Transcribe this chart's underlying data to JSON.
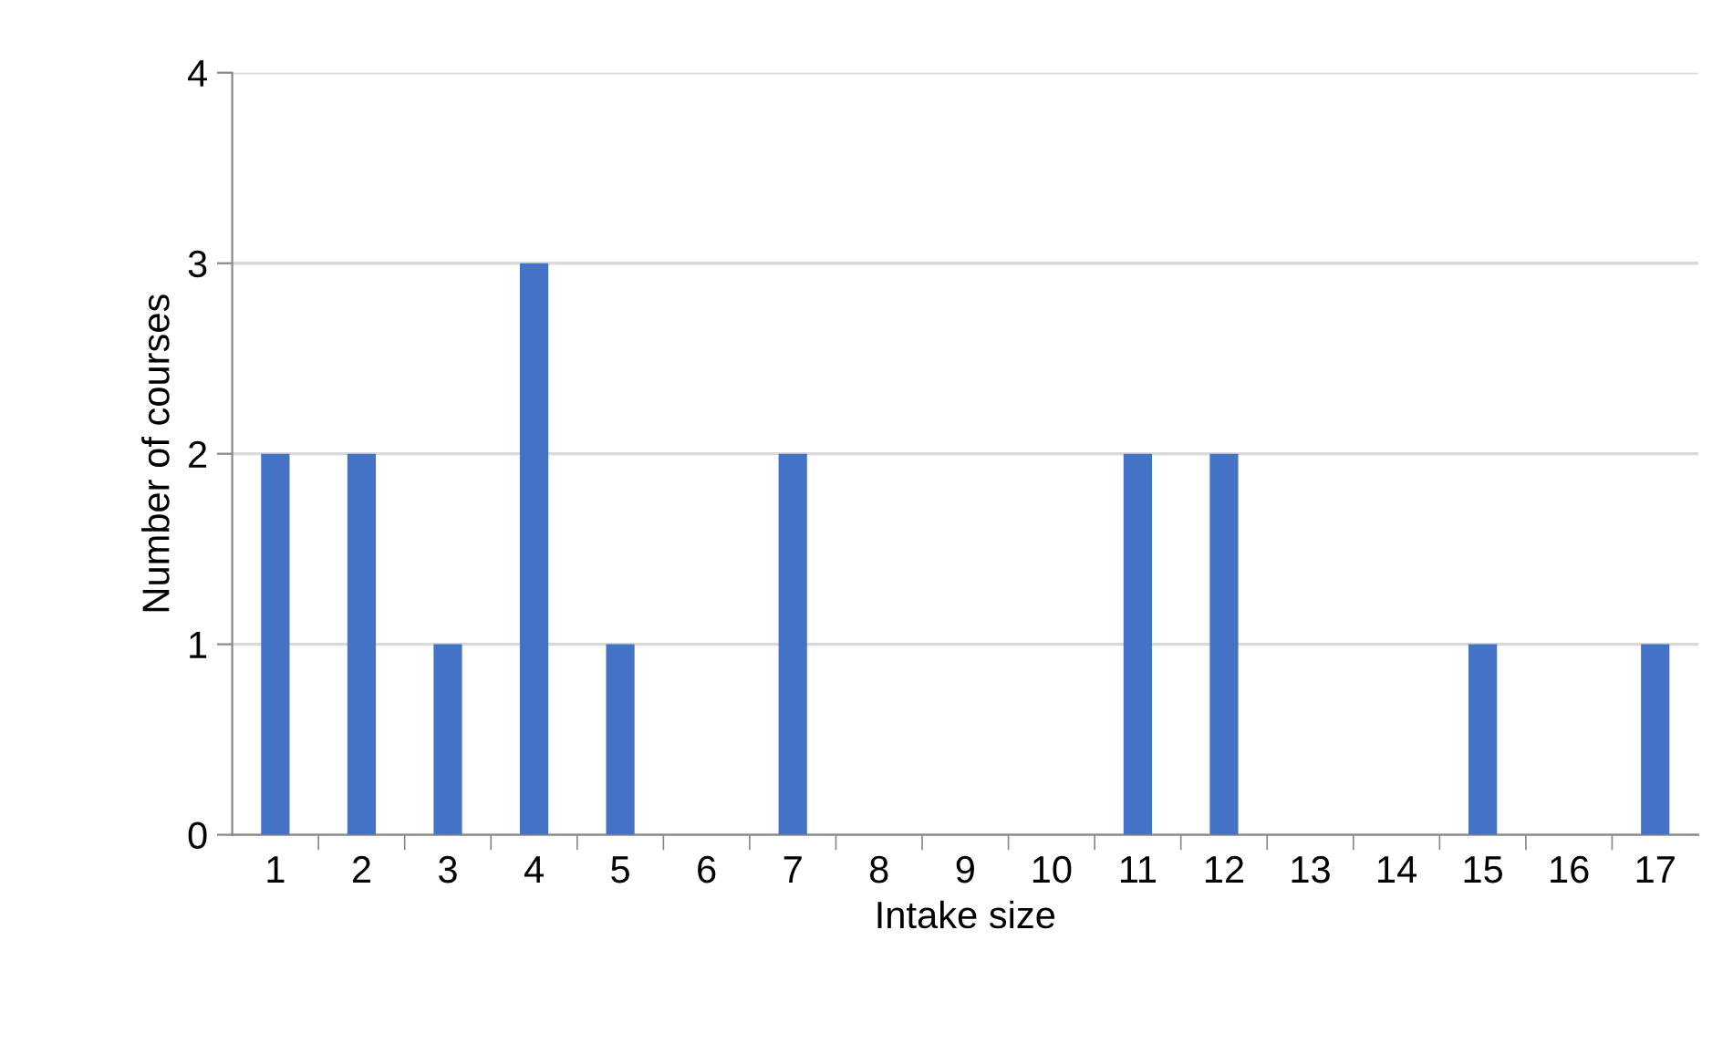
{
  "chart_data": {
    "type": "bar",
    "xlabel": "Intake size",
    "ylabel": "Number of courses",
    "categories": [
      "1",
      "2",
      "3",
      "4",
      "5",
      "6",
      "7",
      "8",
      "9",
      "10",
      "11",
      "12",
      "13",
      "14",
      "15",
      "16",
      "17"
    ],
    "values": [
      2,
      2,
      1,
      3,
      1,
      0,
      2,
      0,
      0,
      0,
      2,
      2,
      0,
      0,
      1,
      0,
      1
    ],
    "color": "#4472c4",
    "ylim": [
      0,
      4
    ],
    "yticks": [
      0,
      1,
      2,
      3,
      4
    ],
    "grid": "y"
  }
}
